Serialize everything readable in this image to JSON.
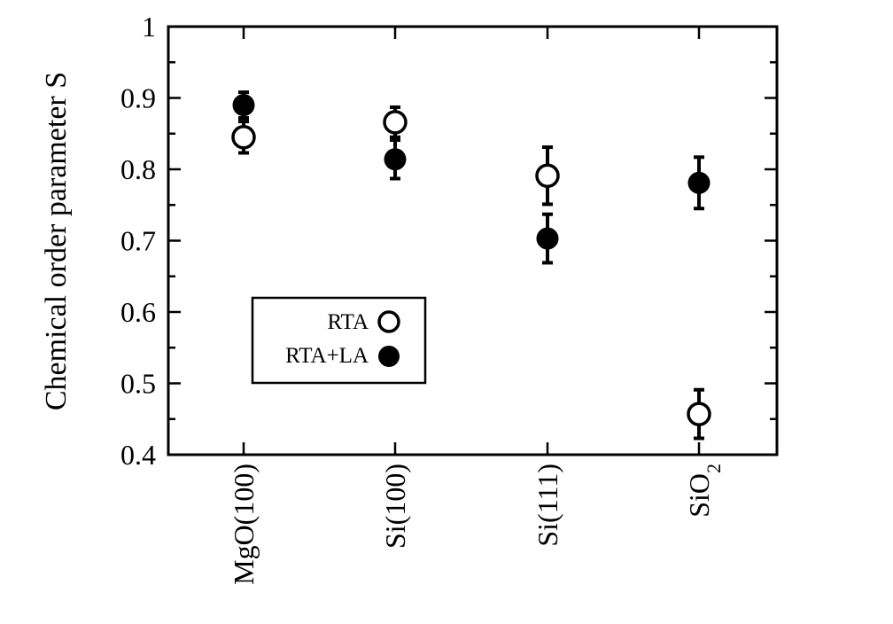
{
  "chart_data": {
    "type": "scatter",
    "title": "",
    "xlabel": "",
    "ylabel": "Chemical order parameter S",
    "categories": [
      "MgO(100)",
      "Si(100)",
      "Si(111)",
      "SiO2"
    ],
    "ylim": [
      0.4,
      1.0
    ],
    "yticks": [
      "0.4",
      "0.5",
      "0.6",
      "0.7",
      "0.8",
      "0.9",
      "1"
    ],
    "grid": false,
    "legend_position": "lower-left",
    "series": [
      {
        "name": "RTA",
        "marker": "open-circle",
        "values": [
          0.845,
          0.866,
          0.791,
          0.457
        ],
        "errors": [
          0.022,
          0.021,
          0.04,
          0.034
        ]
      },
      {
        "name": "RTA+LA",
        "marker": "filled-circle",
        "values": [
          0.89,
          0.814,
          0.703,
          0.781
        ],
        "errors": [
          0.018,
          0.027,
          0.034,
          0.036
        ]
      }
    ]
  }
}
